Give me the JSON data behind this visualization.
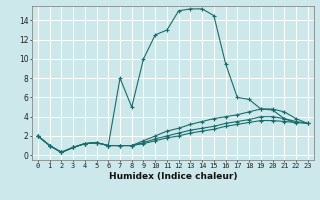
{
  "xlabel": "Humidex (Indice chaleur)",
  "background_color": "#cce8ea",
  "line_color": "#1a6b6b",
  "grid_color": "#ffffff",
  "xlim": [
    -0.5,
    23.5
  ],
  "ylim": [
    -0.5,
    15.5
  ],
  "x": [
    0,
    1,
    2,
    3,
    4,
    5,
    6,
    7,
    8,
    9,
    10,
    11,
    12,
    13,
    14,
    15,
    16,
    17,
    18,
    19,
    20,
    21,
    22,
    23
  ],
  "lines": [
    [
      2.0,
      1.0,
      0.3,
      0.8,
      1.2,
      1.3,
      1.0,
      8.0,
      5.0,
      10.0,
      12.5,
      13.0,
      15.0,
      15.2,
      15.2,
      14.5,
      9.5,
      6.0,
      5.8,
      4.8,
      4.7,
      3.8,
      3.3,
      null
    ],
    [
      2.0,
      1.0,
      0.3,
      0.8,
      1.2,
      1.3,
      1.0,
      1.0,
      1.0,
      1.5,
      2.0,
      2.5,
      2.8,
      3.2,
      3.5,
      3.8,
      4.0,
      4.2,
      4.5,
      4.8,
      4.8,
      4.5,
      3.8,
      3.3
    ],
    [
      2.0,
      1.0,
      0.3,
      0.8,
      1.2,
      1.3,
      1.0,
      1.0,
      1.0,
      1.3,
      1.7,
      2.0,
      2.3,
      2.6,
      2.8,
      3.0,
      3.3,
      3.5,
      3.7,
      4.0,
      4.0,
      3.8,
      3.5,
      3.3
    ],
    [
      2.0,
      1.0,
      0.3,
      0.8,
      1.2,
      1.3,
      1.0,
      1.0,
      1.0,
      1.2,
      1.5,
      1.8,
      2.0,
      2.3,
      2.5,
      2.7,
      3.0,
      3.2,
      3.4,
      3.6,
      3.6,
      3.5,
      3.4,
      3.3
    ]
  ],
  "yticks": [
    0,
    2,
    4,
    6,
    8,
    10,
    12,
    14
  ],
  "xticks": [
    0,
    1,
    2,
    3,
    4,
    5,
    6,
    7,
    8,
    9,
    10,
    11,
    12,
    13,
    14,
    15,
    16,
    17,
    18,
    19,
    20,
    21,
    22,
    23
  ],
  "xlabel_fontsize": 6.5,
  "tick_fontsize": 5.0,
  "ytick_fontsize": 5.5
}
